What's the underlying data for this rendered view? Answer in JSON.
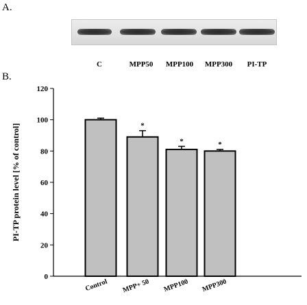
{
  "panel_a": {
    "label": "A.",
    "lanes": [
      "C",
      "MPP50",
      "MPP100",
      "MPP300",
      "PI-TP"
    ]
  },
  "panel_b": {
    "label": "B."
  },
  "chart_data": {
    "type": "bar",
    "title": "",
    "ylabel": "PI-TP protein level [% of control]",
    "xlabel": "",
    "categories": [
      "Control",
      "MPP+ 50",
      "MPP100",
      "MPP300"
    ],
    "values": [
      100,
      89,
      81,
      80
    ],
    "errors": [
      1,
      4,
      2,
      1
    ],
    "significance": [
      "",
      "*",
      "*",
      "*"
    ],
    "ylim": [
      0,
      120
    ],
    "yticks": [
      0,
      20,
      40,
      60,
      80,
      100,
      120
    ],
    "bar_color": "#c0c0c0",
    "grid": false,
    "legend": "none"
  }
}
